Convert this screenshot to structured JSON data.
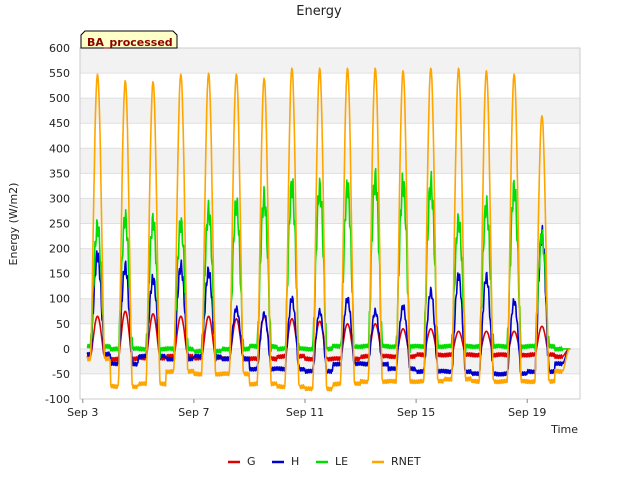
{
  "chart_data": {
    "type": "line",
    "title": "Energy",
    "xlabel": "Time",
    "ylabel": "Energy (W/m2)",
    "badge": "BA_processed",
    "ylim": [
      -100,
      600
    ],
    "xlim_days": [
      2.9,
      20.9
    ],
    "yticks": [
      -100,
      -50,
      0,
      50,
      100,
      150,
      200,
      250,
      300,
      350,
      400,
      450,
      500,
      550,
      600
    ],
    "xticks": [
      {
        "day": 3,
        "label": "Sep 3"
      },
      {
        "day": 7,
        "label": "Sep 7"
      },
      {
        "day": 11,
        "label": "Sep 11"
      },
      {
        "day": 15,
        "label": "Sep 15"
      },
      {
        "day": 19,
        "label": "Sep 19"
      }
    ],
    "days": [
      3,
      4,
      5,
      6,
      7,
      8,
      9,
      10,
      11,
      12,
      13,
      14,
      15,
      16,
      17,
      18,
      19,
      20
    ],
    "series": [
      {
        "name": "G",
        "color": "#dd0000",
        "peaks": [
          65,
          75,
          70,
          65,
          65,
          60,
          65,
          60,
          55,
          50,
          50,
          40,
          40,
          35,
          35,
          35,
          45,
          0
        ],
        "nights": [
          -15,
          -20,
          -18,
          -15,
          -18,
          -20,
          -20,
          -15,
          -20,
          -20,
          -15,
          -15,
          -12,
          -12,
          -12,
          -12,
          -12,
          -15
        ]
      },
      {
        "name": "H",
        "color": "#0000cc",
        "peaks": [
          185,
          165,
          140,
          165,
          155,
          80,
          70,
          100,
          75,
          100,
          75,
          85,
          115,
          145,
          145,
          95,
          230,
          0
        ],
        "nights": [
          -10,
          -30,
          -15,
          -20,
          -15,
          -20,
          -40,
          -40,
          -45,
          -30,
          -30,
          -40,
          -45,
          -45,
          -50,
          -50,
          -45,
          -30
        ]
      },
      {
        "name": "LE",
        "color": "#00dd00",
        "peaks": [
          245,
          260,
          255,
          250,
          275,
          290,
          300,
          325,
          320,
          320,
          340,
          330,
          330,
          255,
          285,
          320,
          225,
          0
        ],
        "nights": [
          5,
          0,
          0,
          0,
          -5,
          0,
          5,
          0,
          0,
          5,
          5,
          5,
          5,
          5,
          5,
          5,
          5,
          0
        ]
      },
      {
        "name": "RNET",
        "color": "#ffa500",
        "peaks": [
          548,
          535,
          533,
          548,
          550,
          548,
          540,
          560,
          560,
          560,
          560,
          555,
          560,
          560,
          555,
          548,
          465,
          0
        ],
        "nights": [
          -20,
          -75,
          -70,
          -45,
          -50,
          -50,
          -70,
          -75,
          -80,
          -70,
          -65,
          -65,
          -65,
          -60,
          -65,
          -65,
          -65,
          -45
        ]
      }
    ]
  }
}
